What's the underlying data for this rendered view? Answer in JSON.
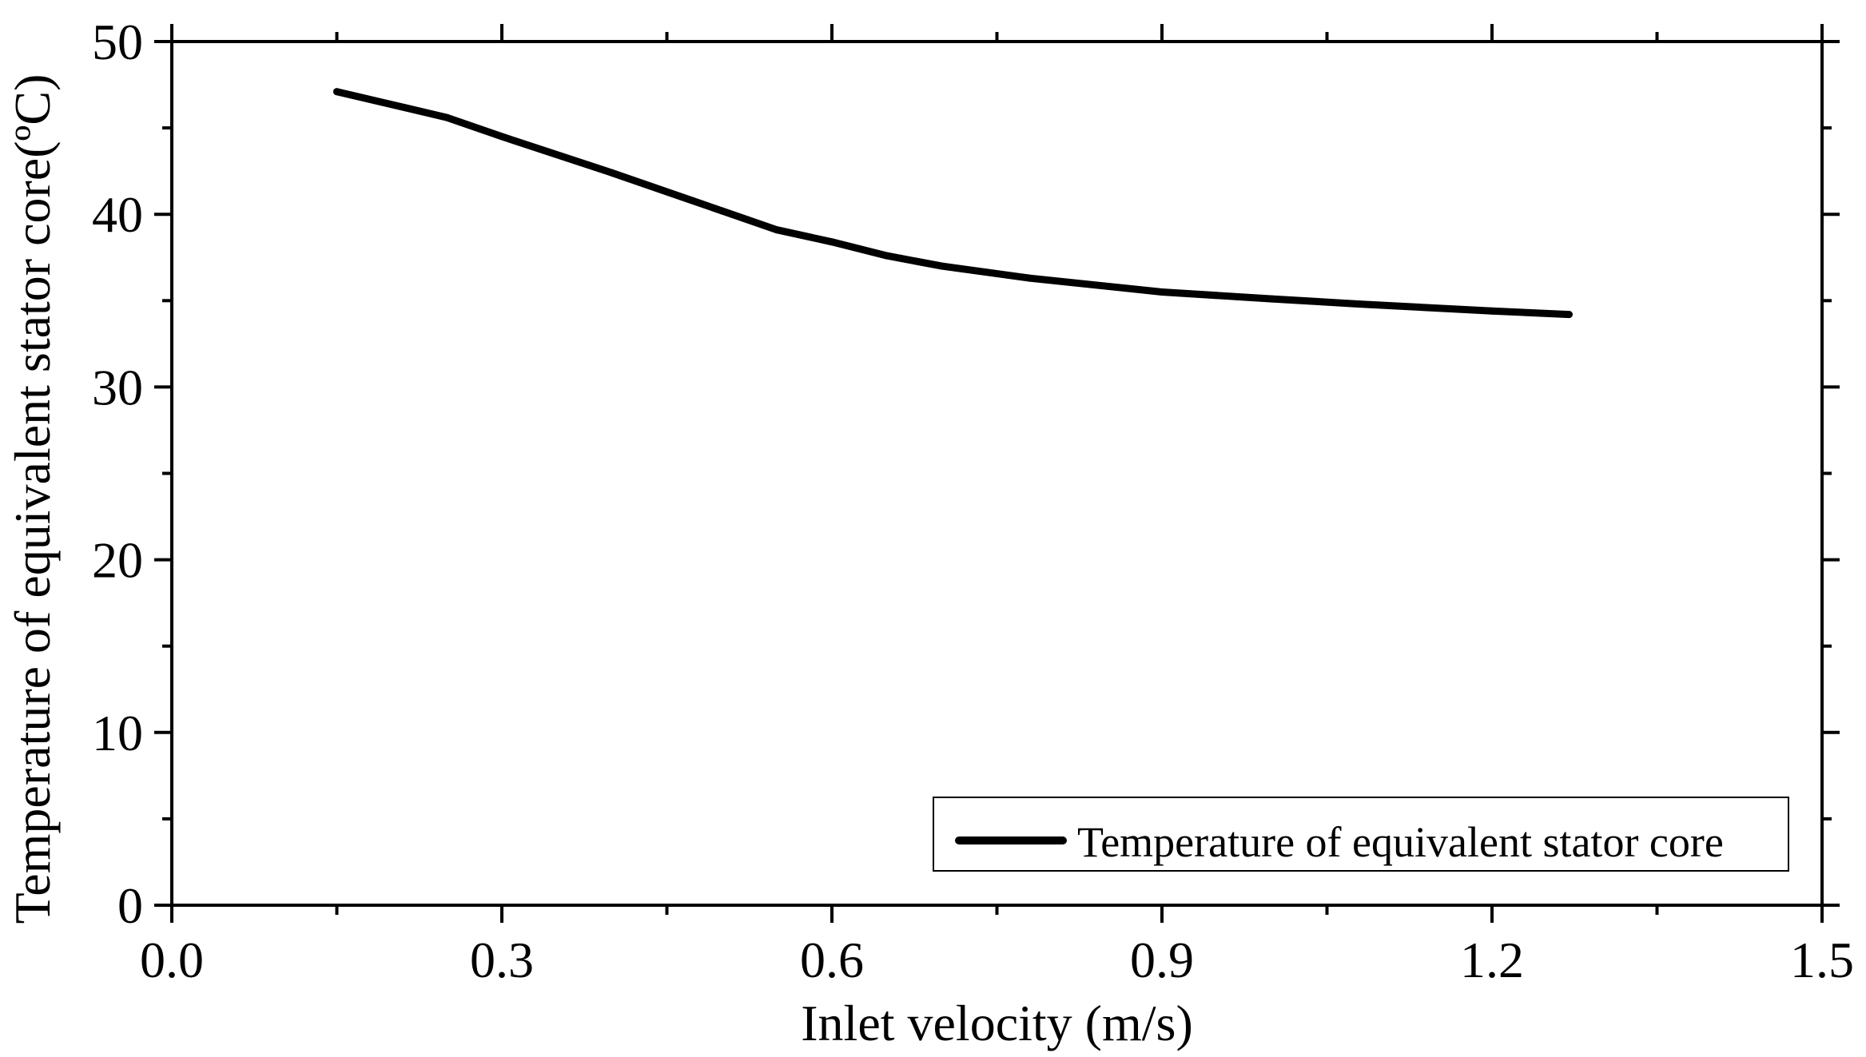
{
  "chart_data": {
    "type": "line",
    "title": "",
    "xlabel": "Inlet velocity (m/s)",
    "ylabel": "Temperature of equivalent stator core(ºC)",
    "xlim": [
      0.0,
      1.5
    ],
    "ylim": [
      0,
      50
    ],
    "xticks": [
      "0.0",
      "0.3",
      "0.6",
      "0.9",
      "1.2",
      "1.5"
    ],
    "yticks": [
      "0",
      "10",
      "20",
      "30",
      "40",
      "50"
    ],
    "grid": false,
    "legend_position": "bottom-right",
    "series": [
      {
        "name": "Temperature of equivalent stator core",
        "color": "#000000",
        "x": [
          0.15,
          0.25,
          0.3,
          0.4,
          0.5,
          0.55,
          0.6,
          0.65,
          0.7,
          0.78,
          0.9,
          1.0,
          1.08,
          1.2,
          1.27
        ],
        "y": [
          47.1,
          45.6,
          44.5,
          42.4,
          40.2,
          39.1,
          38.4,
          37.6,
          37.0,
          36.3,
          35.5,
          35.1,
          34.8,
          34.4,
          34.2
        ]
      }
    ]
  }
}
